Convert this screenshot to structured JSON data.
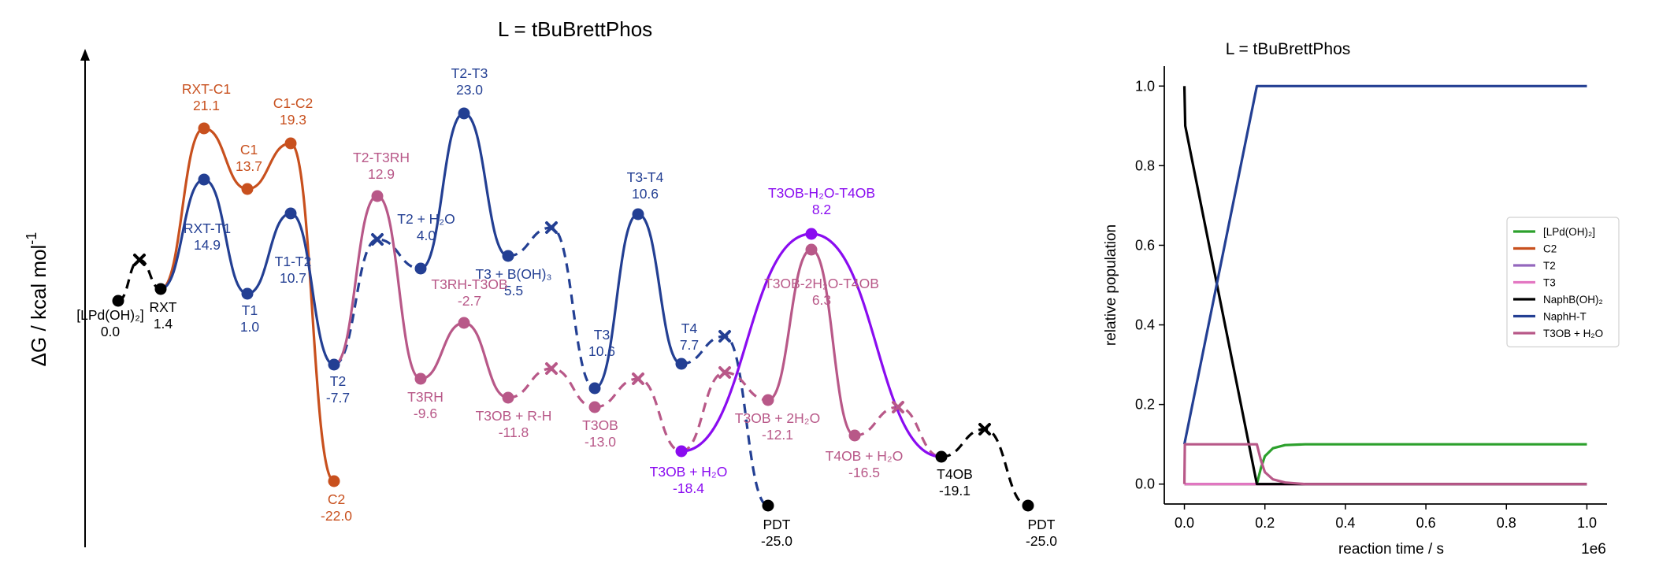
{
  "colors": {
    "orange": "#c8501e",
    "blue": "#233f93",
    "pink": "#b85888",
    "purple": "#8a0cf0",
    "black": "#000000",
    "green": "#2ca02c",
    "t2": "#9467bd",
    "t3": "#e377c2"
  },
  "left_panel": {
    "title": "L = tBuBrettPhos",
    "ylabel": "ΔG / kcal mol",
    "ylabel_sup": "-1"
  },
  "chart_data": [
    {
      "type": "line",
      "title": "L = tBuBrettPhos",
      "ylabel": "ΔG / kcal mol⁻¹",
      "axes": {
        "x_axis": false,
        "y_axis_arrow": true,
        "y_ticks": false
      },
      "y_range": [
        -25,
        23
      ],
      "nodes": [
        {
          "id": "LPd",
          "x": 0,
          "y": 0.0,
          "color": "black",
          "label_lines": [
            "[LPd(OH)₂]",
            "0.0"
          ]
        },
        {
          "id": "RXT",
          "x": 1,
          "y": 1.4,
          "color": "black",
          "label_lines": [
            "RXT",
            "1.4"
          ]
        },
        {
          "id": "RXT-C1",
          "x": 2,
          "y": 21.1,
          "color": "orange",
          "label_lines": [
            "RXT-C1",
            "21.1"
          ]
        },
        {
          "id": "C1",
          "x": 3,
          "y": 13.7,
          "color": "orange",
          "label_lines": [
            "C1",
            "13.7"
          ]
        },
        {
          "id": "C1-C2",
          "x": 4,
          "y": 19.3,
          "color": "orange",
          "label_lines": [
            "C1-C2",
            "19.3"
          ]
        },
        {
          "id": "C2",
          "x": 5,
          "y": -22.0,
          "color": "orange",
          "label_lines": [
            "C2",
            "-22.0"
          ]
        },
        {
          "id": "RXT-T1",
          "x": 2,
          "y": 14.9,
          "color": "blue",
          "label_lines": [
            "RXT-T1",
            "14.9"
          ]
        },
        {
          "id": "T1",
          "x": 3,
          "y": 1.0,
          "color": "blue",
          "label_lines": [
            "T1",
            "1.0"
          ]
        },
        {
          "id": "T1-T2",
          "x": 4,
          "y": 10.7,
          "color": "blue",
          "label_lines": [
            "T1-T2",
            "10.7"
          ]
        },
        {
          "id": "T2",
          "x": 5,
          "y": -7.7,
          "color": "blue",
          "label_lines": [
            "T2",
            "-7.7"
          ]
        },
        {
          "id": "T2+H2O",
          "x": 7,
          "y": 4.0,
          "color": "blue",
          "label_lines": [
            "T2 + H₂O",
            "4.0"
          ]
        },
        {
          "id": "T2-T3",
          "x": 8,
          "y": 23.0,
          "color": "blue",
          "label_lines": [
            "T2-T3",
            "23.0"
          ]
        },
        {
          "id": "T3+B(OH)3",
          "x": 9,
          "y": 5.5,
          "color": "blue",
          "label_lines": [
            "T3 + B(OH)₃",
            "5.5"
          ]
        },
        {
          "id": "T3",
          "x": 11,
          "y": 10.6,
          "color": "blue",
          "label_lines": [
            "T3",
            "10.6"
          ]
        },
        {
          "id": "T3-T4",
          "x": 12,
          "y": 10.6,
          "color": "blue",
          "label_lines": [
            "T3-T4",
            "10.6"
          ]
        },
        {
          "id": "T4",
          "x": 13,
          "y": 7.7,
          "color": "blue",
          "label_lines": [
            "T4",
            "7.7"
          ]
        },
        {
          "id": "PDT1",
          "x": 15,
          "y": -25.0,
          "color": "black",
          "label_lines": [
            "PDT",
            "-25.0"
          ]
        },
        {
          "id": "T2-T3RH",
          "x": 6,
          "y": 12.9,
          "color": "pink",
          "label_lines": [
            "T2-T3RH",
            "12.9"
          ]
        },
        {
          "id": "T3RH",
          "x": 7,
          "y": -9.6,
          "color": "pink",
          "label_lines": [
            "T3RH",
            "-9.6"
          ]
        },
        {
          "id": "T3RH-T3OB",
          "x": 8,
          "y": -2.7,
          "color": "pink",
          "label_lines": [
            "T3RH-T3OB",
            "-2.7"
          ]
        },
        {
          "id": "T3OB+R-H",
          "x": 9,
          "y": -11.8,
          "color": "pink",
          "label_lines": [
            "T3OB + R-H",
            "-11.8"
          ]
        },
        {
          "id": "T3OB",
          "x": 11,
          "y": -13.0,
          "color": "pink",
          "label_lines": [
            "T3OB",
            "-13.0"
          ]
        },
        {
          "id": "T3OB+H2O",
          "x": 13,
          "y": -18.4,
          "color": "purple",
          "label_lines": [
            "T3OB + H₂O",
            "-18.4"
          ]
        },
        {
          "id": "T3OB+2H2O",
          "x": 15,
          "y": -12.1,
          "color": "pink",
          "label_lines": [
            "T3OB + 2H₂O",
            "-12.1"
          ]
        },
        {
          "id": "T3OB-2H2O-T4OB",
          "x": 16,
          "y": 6.3,
          "color": "pink",
          "label_lines": [
            "T3OB-2H₂O-T4OB",
            "6.3"
          ]
        },
        {
          "id": "T3OB-H2O-T4OB",
          "x": 16,
          "y": 8.2,
          "color": "purple",
          "label_lines": [
            "T3OB-H₂O-T4OB",
            "8.2"
          ]
        },
        {
          "id": "T4OB+H2O",
          "x": 17,
          "y": -16.5,
          "color": "pink",
          "label_lines": [
            "T4OB + H₂O",
            "-16.5"
          ]
        },
        {
          "id": "T4OB",
          "x": 19,
          "y": -19.1,
          "color": "black",
          "label_lines": [
            "T4OB",
            "-19.1"
          ]
        },
        {
          "id": "PDT2",
          "x": 21,
          "y": -25.0,
          "color": "black",
          "label_lines": [
            "PDT",
            "-25.0"
          ]
        }
      ]
    },
    {
      "type": "line",
      "title": "L = tBuBrettPhos",
      "xlabel": "reaction time / s",
      "ylabel": "relative population",
      "x_multiplier": "1e6",
      "xlim": [
        -0.05,
        1.05
      ],
      "ylim": [
        -0.05,
        1.05
      ],
      "x_ticks": [
        "0.0",
        "0.2",
        "0.4",
        "0.6",
        "0.8",
        "1.0"
      ],
      "y_ticks": [
        "0.0",
        "0.2",
        "0.4",
        "0.6",
        "0.8",
        "1.0"
      ],
      "legend_position": "center-right",
      "series": [
        {
          "name": "[LPd(OH)₂]",
          "color": "#2ca02c",
          "x": [
            0,
            0.18,
            0.19,
            0.2,
            0.22,
            0.25,
            0.3,
            1.0
          ],
          "y": [
            0,
            0,
            0.04,
            0.07,
            0.09,
            0.098,
            0.1,
            0.1
          ]
        },
        {
          "name": "C2",
          "color": "#c8501e",
          "x": [
            0,
            1.0
          ],
          "y": [
            0,
            0
          ]
        },
        {
          "name": "T2",
          "color": "#9467bd",
          "x": [
            0,
            1.0
          ],
          "y": [
            0,
            0
          ]
        },
        {
          "name": "T3",
          "color": "#e377c2",
          "x": [
            0,
            1.0
          ],
          "y": [
            0,
            0
          ]
        },
        {
          "name": "NaphB(OH)₂",
          "color": "#000000",
          "x": [
            0,
            0.002,
            0.18,
            1.0
          ],
          "y": [
            1.0,
            0.9,
            0,
            0
          ]
        },
        {
          "name": "NaphH-T",
          "color": "#233f93",
          "x": [
            0,
            0.18,
            1.0
          ],
          "y": [
            0.1,
            1.0,
            1.0
          ]
        },
        {
          "name": "T3OB + H₂O",
          "color": "#b85888",
          "x": [
            0,
            0.001,
            0.18,
            0.19,
            0.2,
            0.22,
            0.25,
            0.3,
            1.0
          ],
          "y": [
            0,
            0.1,
            0.1,
            0.06,
            0.03,
            0.012,
            0.004,
            0,
            0
          ]
        }
      ]
    }
  ]
}
